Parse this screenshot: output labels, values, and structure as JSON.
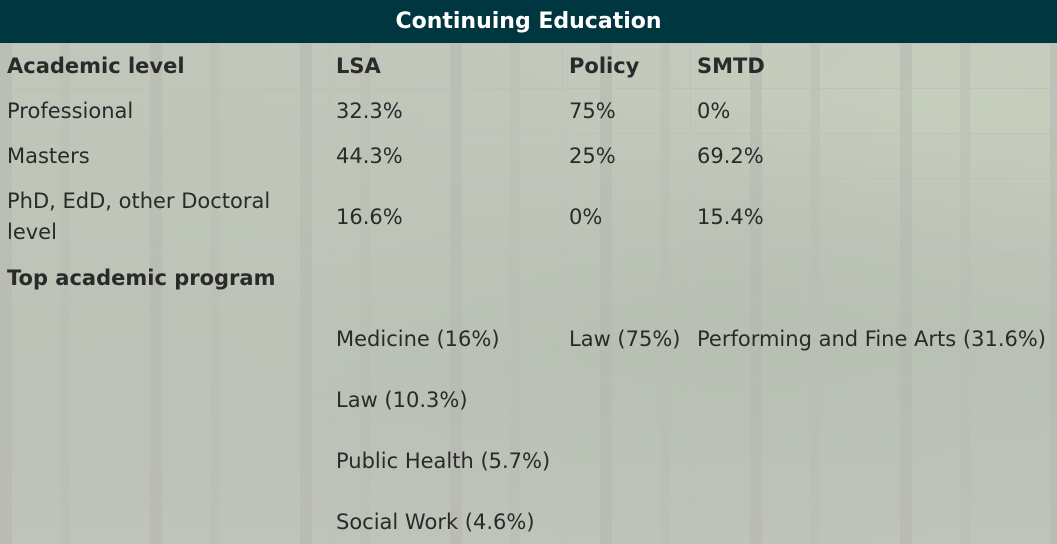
{
  "title": "Continuing Education",
  "header": {
    "col1": "Academic level",
    "col2": "LSA",
    "col3": "Policy",
    "col4": "SMTD"
  },
  "levels": [
    {
      "label": "Professional",
      "lsa": "32.3%",
      "policy": "75%",
      "smtd": "0%"
    },
    {
      "label": "Masters",
      "lsa": "44.3%",
      "policy": "25%",
      "smtd": "69.2%"
    },
    {
      "label": "PhD, EdD, other Doctoral level",
      "lsa": "16.6%",
      "policy": "0%",
      "smtd": "15.4%"
    }
  ],
  "programs_heading": "Top academic program",
  "programs": [
    {
      "lsa": "Medicine (16%)",
      "policy": "Law (75%)",
      "smtd": "Performing and Fine Arts (31.6%)"
    },
    {
      "lsa": "Law (10.3%)",
      "policy": "",
      "smtd": ""
    },
    {
      "lsa": "Public Health (5.7%)",
      "policy": "",
      "smtd": ""
    },
    {
      "lsa": "Social Work (4.6%)",
      "policy": "",
      "smtd": ""
    }
  ]
}
